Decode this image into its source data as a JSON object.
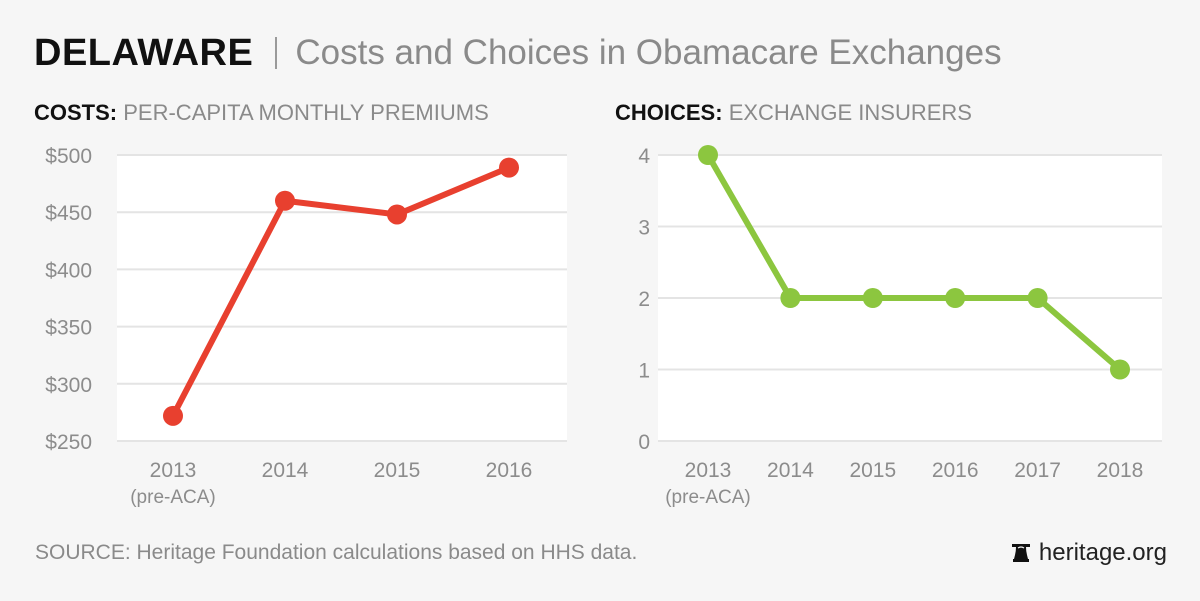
{
  "header": {
    "state": "DELAWARE",
    "subtitle": "Costs and Choices in Obamacare Exchanges"
  },
  "panels": {
    "left": {
      "bold": "COSTS:",
      "label": "PER-CAPITA MONTHLY PREMIUMS"
    },
    "right": {
      "bold": "CHOICES:",
      "label": "EXCHANGE INSURERS"
    }
  },
  "footer": {
    "source": "SOURCE: Heritage Foundation calculations based on HHS data.",
    "brand": "heritage.org",
    "brand_icon": "liberty-bell-icon"
  },
  "colors": {
    "costs": "#e8402f",
    "choices": "#8cc63f",
    "grid": "#e4e4e4",
    "plot_bg": "#ffffff"
  },
  "chart_data": [
    {
      "type": "line",
      "title": "COSTS: PER-CAPITA MONTHLY PREMIUMS",
      "categories": [
        "2013",
        "2014",
        "2015",
        "2016"
      ],
      "category_sublabels": [
        "(pre-ACA)",
        "",
        "",
        ""
      ],
      "values": [
        272,
        460,
        448,
        489
      ],
      "yticks": [
        250,
        300,
        350,
        400,
        450,
        500
      ],
      "ytick_labels": [
        "$250",
        "$300",
        "$350",
        "$400",
        "$450",
        "$500"
      ],
      "ylim": [
        250,
        500
      ],
      "xlabel": "",
      "ylabel": "",
      "grid": true,
      "legend": "none"
    },
    {
      "type": "line",
      "title": "CHOICES: EXCHANGE INSURERS",
      "categories": [
        "2013",
        "2014",
        "2015",
        "2016",
        "2017",
        "2018"
      ],
      "category_sublabels": [
        "(pre-ACA)",
        "",
        "",
        "",
        "",
        ""
      ],
      "values": [
        4,
        2,
        2,
        2,
        2,
        1
      ],
      "yticks": [
        0,
        1,
        2,
        3,
        4
      ],
      "ytick_labels": [
        "0",
        "1",
        "2",
        "3",
        "4"
      ],
      "ylim": [
        0,
        4
      ],
      "xlabel": "",
      "ylabel": "",
      "grid": true,
      "legend": "none"
    }
  ]
}
